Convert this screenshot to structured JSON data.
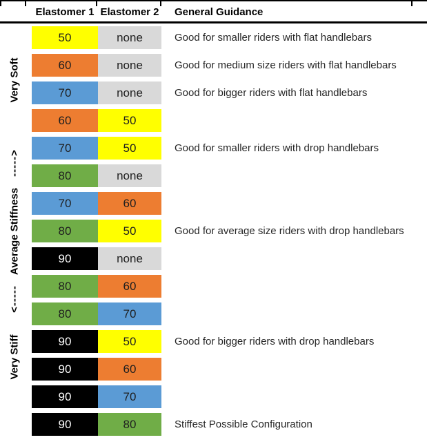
{
  "header": {
    "elastomer1": "Elastomer 1",
    "elastomer2": "Elastomer 2",
    "guidance": "General Guidance"
  },
  "stiffness_labels": [
    "Very Soft",
    "----->",
    "Average Stiffness",
    "<-----",
    "Very Stiff"
  ],
  "colors": {
    "yellow": "#FFFF00",
    "orange": "#ED7D31",
    "blue": "#5B9BD5",
    "green": "#70AD47",
    "gray": "#D9D9D9",
    "black": "#000000"
  },
  "chart_data": {
    "type": "table",
    "title": "Elastomer stiffness configuration guide",
    "columns": [
      "Elastomer 1",
      "Elastomer 2",
      "General Guidance"
    ],
    "stiffness_scale": [
      "Very Soft",
      "----->",
      "Average Stiffness",
      "<-----",
      "Very Stiff"
    ],
    "rows": [
      {
        "elastomer1": {
          "value": "50",
          "color": "yellow"
        },
        "elastomer2": {
          "value": "none",
          "color": "gray"
        },
        "guidance": "Good for smaller riders with flat handlebars"
      },
      {
        "elastomer1": {
          "value": "60",
          "color": "orange"
        },
        "elastomer2": {
          "value": "none",
          "color": "gray"
        },
        "guidance": "Good for medium size riders with flat handlebars"
      },
      {
        "elastomer1": {
          "value": "70",
          "color": "blue"
        },
        "elastomer2": {
          "value": "none",
          "color": "gray"
        },
        "guidance": "Good for bigger riders with flat handlebars"
      },
      {
        "elastomer1": {
          "value": "60",
          "color": "orange"
        },
        "elastomer2": {
          "value": "50",
          "color": "yellow"
        },
        "guidance": ""
      },
      {
        "elastomer1": {
          "value": "70",
          "color": "blue"
        },
        "elastomer2": {
          "value": "50",
          "color": "yellow"
        },
        "guidance": "Good for smaller riders with drop handlebars"
      },
      {
        "elastomer1": {
          "value": "80",
          "color": "green"
        },
        "elastomer2": {
          "value": "none",
          "color": "gray"
        },
        "guidance": ""
      },
      {
        "elastomer1": {
          "value": "70",
          "color": "blue"
        },
        "elastomer2": {
          "value": "60",
          "color": "orange"
        },
        "guidance": ""
      },
      {
        "elastomer1": {
          "value": "80",
          "color": "green"
        },
        "elastomer2": {
          "value": "50",
          "color": "yellow"
        },
        "guidance": "Good for average size riders with drop handlebars"
      },
      {
        "elastomer1": {
          "value": "90",
          "color": "black"
        },
        "elastomer2": {
          "value": "none",
          "color": "gray"
        },
        "guidance": ""
      },
      {
        "elastomer1": {
          "value": "80",
          "color": "green"
        },
        "elastomer2": {
          "value": "60",
          "color": "orange"
        },
        "guidance": ""
      },
      {
        "elastomer1": {
          "value": "80",
          "color": "green"
        },
        "elastomer2": {
          "value": "70",
          "color": "blue"
        },
        "guidance": ""
      },
      {
        "elastomer1": {
          "value": "90",
          "color": "black"
        },
        "elastomer2": {
          "value": "50",
          "color": "yellow"
        },
        "guidance": "Good for bigger riders with drop handlebars"
      },
      {
        "elastomer1": {
          "value": "90",
          "color": "black"
        },
        "elastomer2": {
          "value": "60",
          "color": "orange"
        },
        "guidance": ""
      },
      {
        "elastomer1": {
          "value": "90",
          "color": "black"
        },
        "elastomer2": {
          "value": "70",
          "color": "blue"
        },
        "guidance": ""
      },
      {
        "elastomer1": {
          "value": "90",
          "color": "black"
        },
        "elastomer2": {
          "value": "80",
          "color": "green"
        },
        "guidance": "Stiffest Possible Configuration"
      }
    ]
  }
}
